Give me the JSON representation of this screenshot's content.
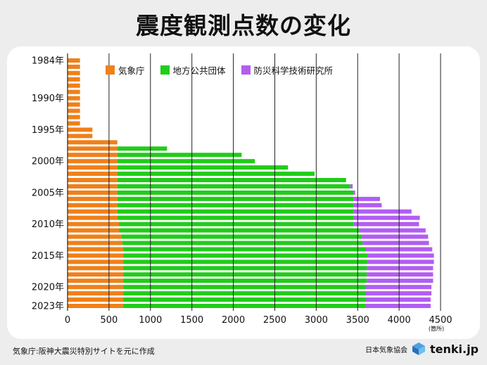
{
  "page": {
    "title": "震度観測点数の変化",
    "source": "気象庁:阪神大震災特別サイトを元に作成",
    "org": "日本気象協会",
    "brand": "tenki.jp"
  },
  "chart_data": {
    "type": "bar",
    "orientation": "horizontal",
    "stacked": true,
    "categories": [
      "1984",
      "1985",
      "1986",
      "1987",
      "1988",
      "1989",
      "1990",
      "1991",
      "1992",
      "1993",
      "1994",
      "1995",
      "1996",
      "1997",
      "1998",
      "1999",
      "2000",
      "2001",
      "2002",
      "2003",
      "2004",
      "2005",
      "2006",
      "2007",
      "2008",
      "2009",
      "2010",
      "2011",
      "2012",
      "2013",
      "2014",
      "2015",
      "2016",
      "2017",
      "2018",
      "2019",
      "2020",
      "2021",
      "2022",
      "2023"
    ],
    "category_labels": [
      "1984年",
      "",
      "",
      "",
      "",
      "",
      "1990年",
      "",
      "",
      "",
      "",
      "1995年",
      "",
      "",
      "",
      "",
      "2000年",
      "",
      "",
      "",
      "",
      "2005年",
      "",
      "",
      "",
      "",
      "2010年",
      "",
      "",
      "",
      "",
      "2015年",
      "",
      "",
      "",
      "",
      "2020年",
      "",
      "",
      "2023年"
    ],
    "series": [
      {
        "name": "気象庁",
        "color": "#f08019",
        "values": [
          150,
          150,
          150,
          150,
          150,
          150,
          150,
          150,
          150,
          150,
          150,
          300,
          300,
          600,
          600,
          600,
          600,
          600,
          600,
          600,
          600,
          600,
          600,
          600,
          600,
          600,
          620,
          620,
          650,
          660,
          670,
          670,
          670,
          670,
          670,
          670,
          670,
          670,
          670,
          670
        ]
      },
      {
        "name": "地方公共団体",
        "color": "#21cc1a",
        "values": [
          0,
          0,
          0,
          0,
          0,
          0,
          0,
          0,
          0,
          0,
          0,
          0,
          0,
          0,
          600,
          1500,
          1660,
          2060,
          2380,
          2760,
          2810,
          2850,
          2850,
          2850,
          2850,
          2850,
          2830,
          2900,
          2900,
          2900,
          2930,
          2950,
          2950,
          2940,
          2940,
          2940,
          2930,
          2930,
          2930,
          2930
        ]
      },
      {
        "name": "防災科学技術研究所",
        "color": "#b35df2",
        "values": [
          0,
          0,
          0,
          0,
          0,
          0,
          0,
          0,
          0,
          0,
          0,
          0,
          0,
          0,
          0,
          0,
          0,
          0,
          0,
          0,
          30,
          20,
          320,
          340,
          700,
          800,
          790,
          800,
          800,
          800,
          800,
          800,
          800,
          800,
          800,
          800,
          790,
          790,
          780,
          780
        ]
      }
    ],
    "x_ticks": [
      0,
      500,
      1000,
      1500,
      2000,
      2500,
      3000,
      3500,
      4000,
      4500
    ],
    "xlim": [
      0,
      4500
    ],
    "x_unit": "(箇所)",
    "grid": "vertical",
    "legend_position": "top-left"
  }
}
